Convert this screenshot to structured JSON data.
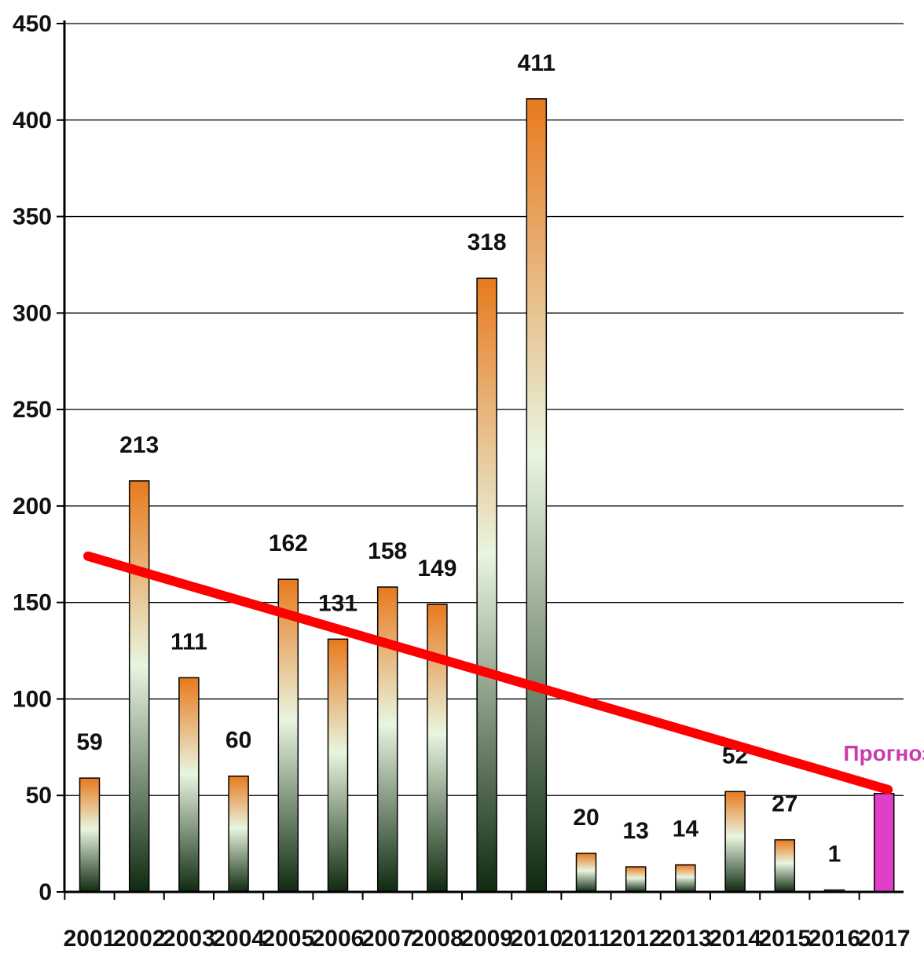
{
  "chart_data": {
    "type": "bar",
    "categories": [
      "2001",
      "2002",
      "2003",
      "2004",
      "2005",
      "2006",
      "2007",
      "2008",
      "2009",
      "2010",
      "2011",
      "2012",
      "2013",
      "2014",
      "2015",
      "2016",
      "2017"
    ],
    "values": [
      59,
      213,
      111,
      60,
      162,
      131,
      158,
      149,
      318,
      411,
      20,
      13,
      14,
      52,
      27,
      1,
      51
    ],
    "data_labels": [
      "59",
      "213",
      "111",
      "60",
      "162",
      "131",
      "158",
      "149",
      "318",
      "411",
      "20",
      "13",
      "14",
      "52",
      "27",
      "1",
      ""
    ],
    "forecast_category": "2017",
    "forecast_label": "Прогноз",
    "yticks": [
      "0",
      "50",
      "100",
      "150",
      "200",
      "250",
      "300",
      "350",
      "400",
      "450"
    ],
    "ylim": [
      0,
      450
    ],
    "grid": true,
    "legend": "none",
    "trendline": {
      "start": [
        "2001",
        174
      ],
      "end": [
        "2017",
        53
      ],
      "color": "#ff0000"
    },
    "colors": {
      "bar_top": "#e87a1e",
      "bar_mid": "#e8f5e0",
      "bar_bottom": "#0f2a10",
      "forecast_bar": "#e040c8",
      "forecast_text": "#c83cb0",
      "trendline": "#ff0000"
    }
  }
}
